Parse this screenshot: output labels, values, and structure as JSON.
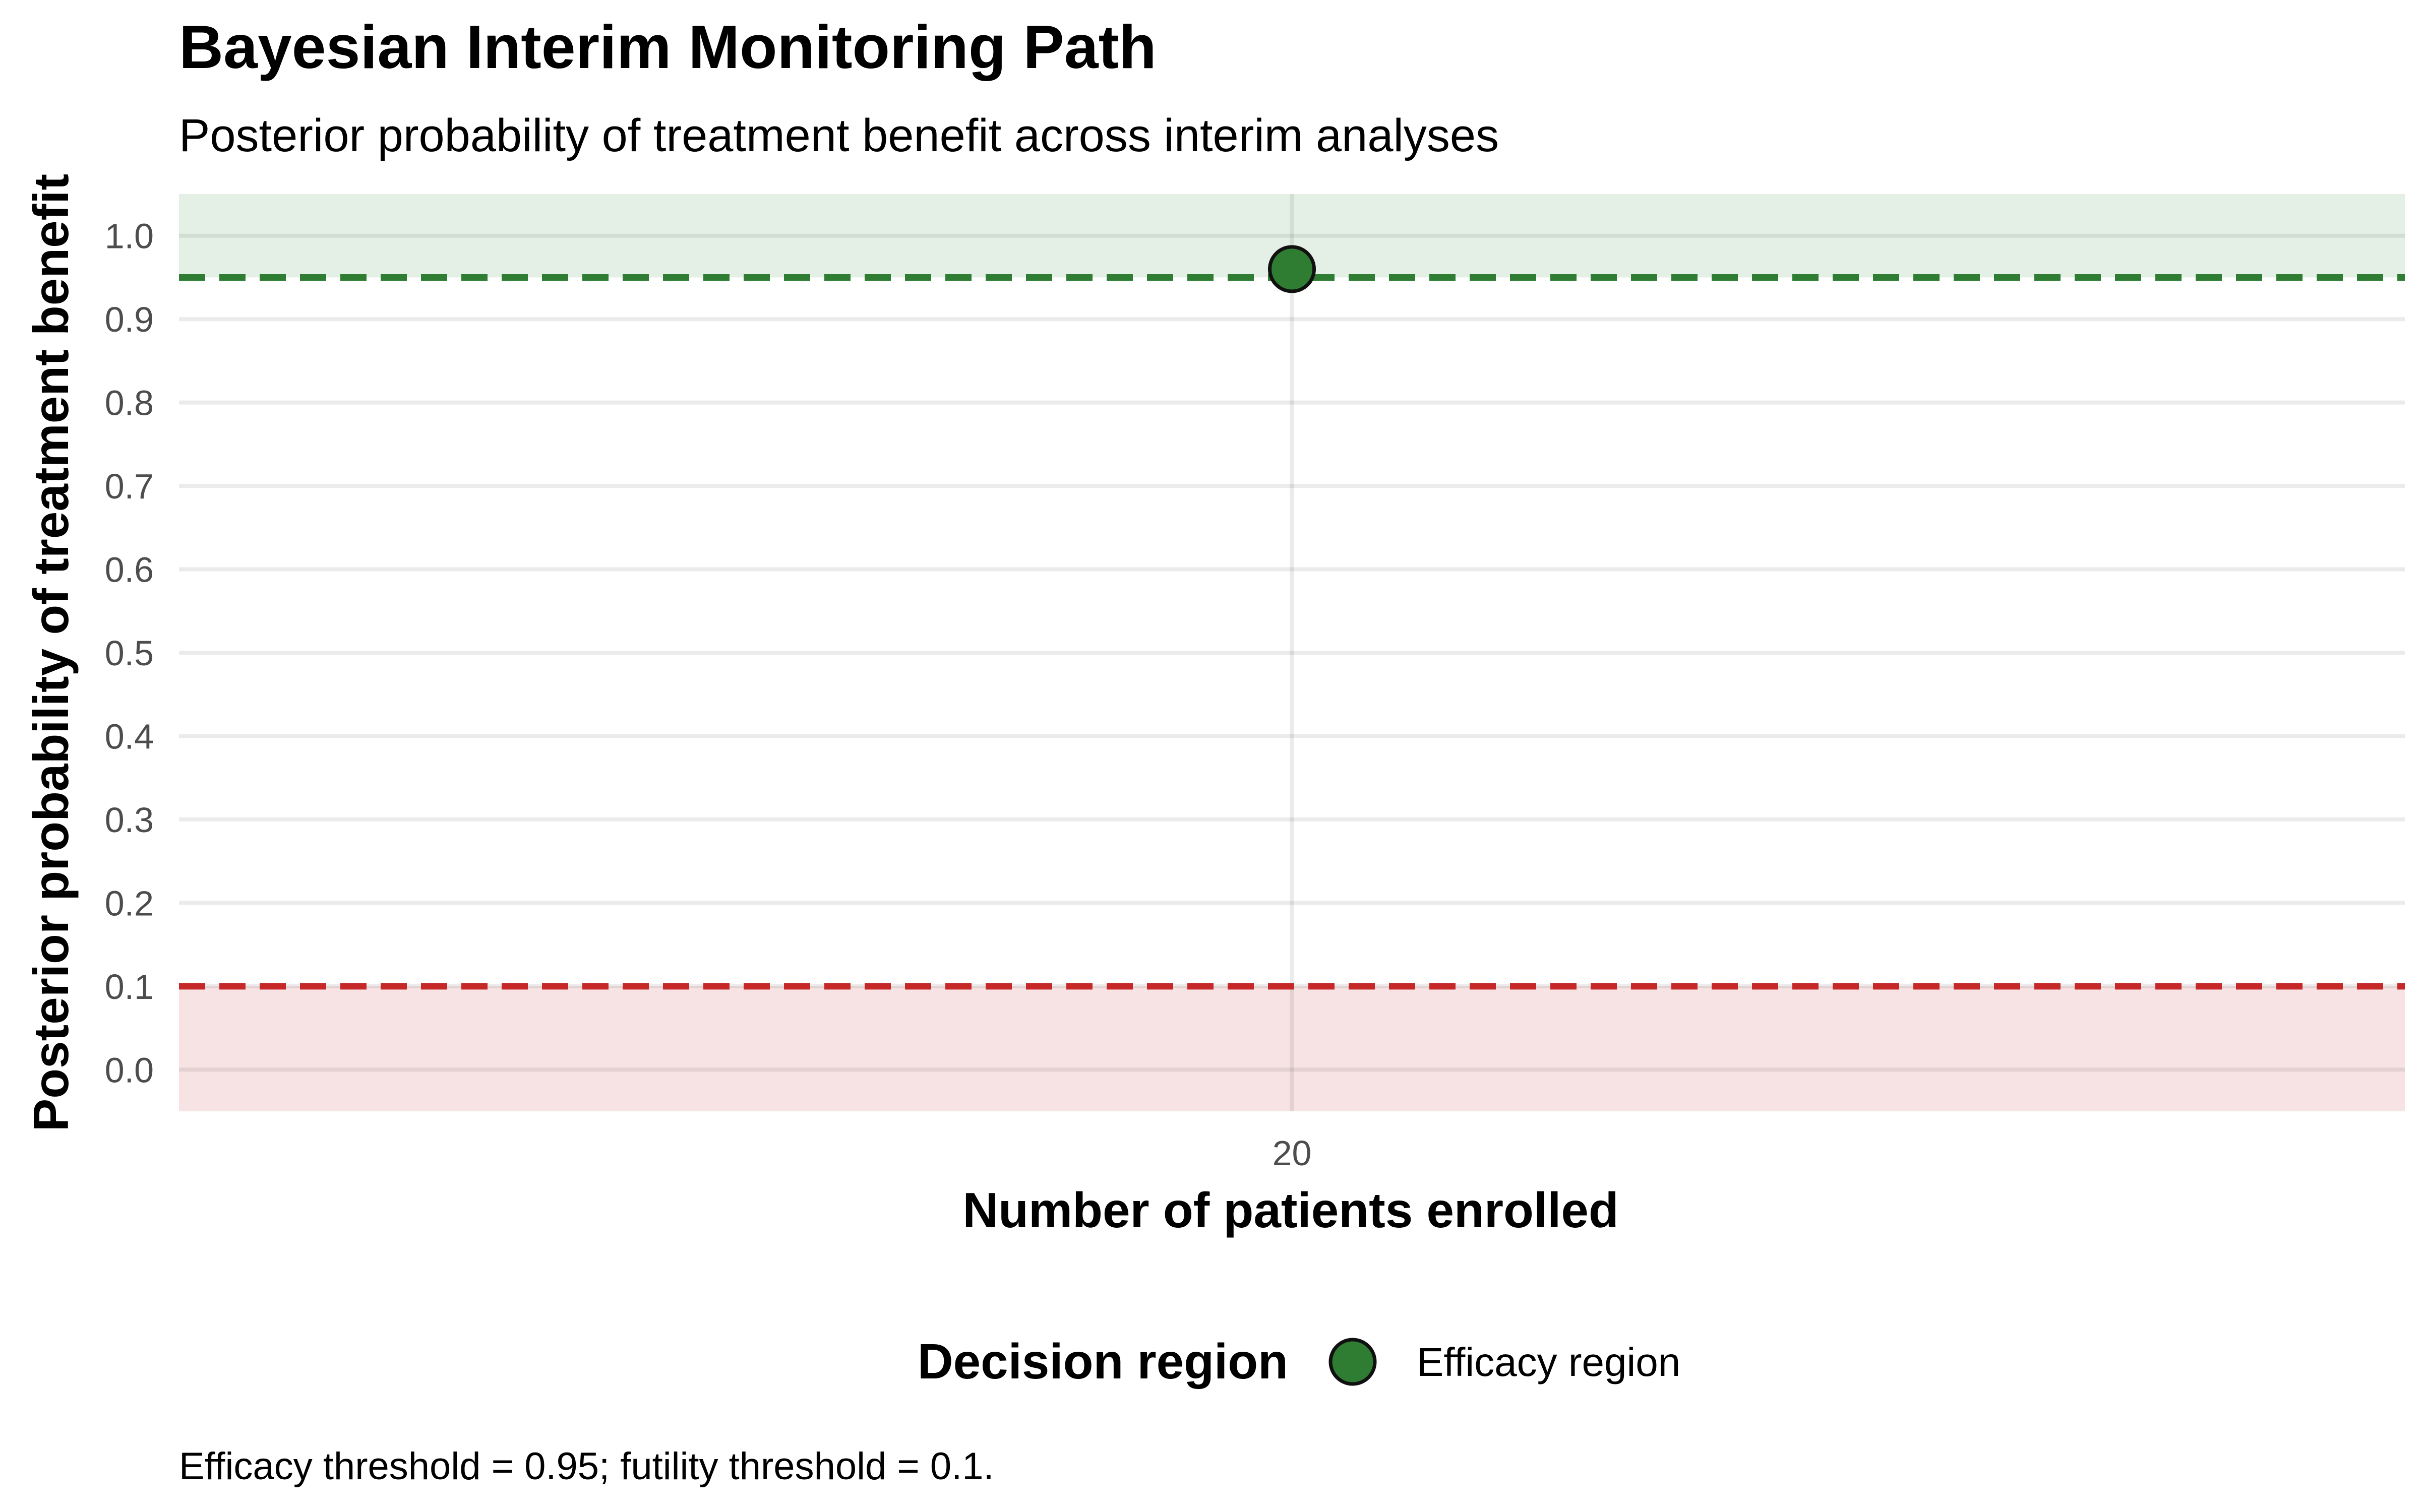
{
  "chart_data": {
    "type": "scatter",
    "title": "Bayesian Interim Monitoring Path",
    "subtitle": "Posterior probability of treatment benefit across interim analyses",
    "xlabel": "Number of patients enrolled",
    "ylabel": "Posterior probability of treatment benefit",
    "caption": "Efficacy threshold = 0.95; futility threshold = 0.1.",
    "x_ticks": [
      "20"
    ],
    "y_ticks": [
      "0.0",
      "0.1",
      "0.2",
      "0.3",
      "0.4",
      "0.5",
      "0.6",
      "0.7",
      "0.8",
      "0.9",
      "1.0"
    ],
    "ylim": [
      -0.05,
      1.05
    ],
    "grid": true,
    "legend": {
      "title": "Decision region",
      "position": "bottom",
      "entries": [
        {
          "label": "Efficacy region",
          "color": "#2E7D32"
        }
      ]
    },
    "series": [
      {
        "name": "Efficacy region",
        "color": "#2E7D32",
        "points": [
          {
            "x": 20,
            "y": 0.96
          }
        ]
      }
    ],
    "thresholds": {
      "efficacy": {
        "value": 0.95,
        "line_color": "#2E7D32",
        "band_color": "#E4F0E6"
      },
      "futility": {
        "value": 0.1,
        "line_color": "#C62828",
        "band_color": "#F7E3E4"
      }
    }
  }
}
